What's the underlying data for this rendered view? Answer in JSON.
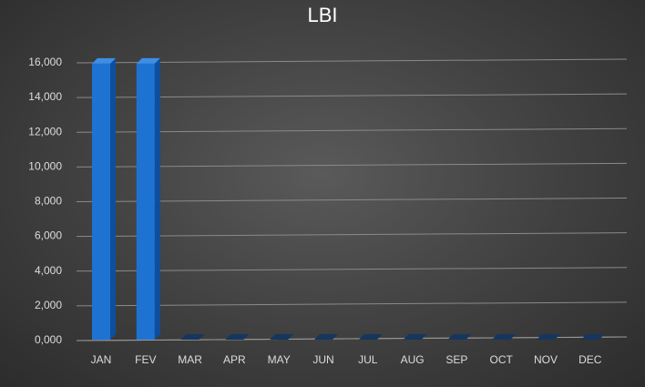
{
  "chart_data": {
    "type": "bar",
    "title": "LBI",
    "categories": [
      "JAN",
      "FEV",
      "MAR",
      "APR",
      "MAY",
      "JUN",
      "JUL",
      "AUG",
      "SEP",
      "OCT",
      "NOV",
      "DEC"
    ],
    "values": [
      15900,
      15900,
      0,
      0,
      0,
      0,
      0,
      0,
      0,
      0,
      0,
      0
    ],
    "xlabel": "",
    "ylabel": "",
    "ylim": [
      0,
      16000
    ],
    "yticks": [
      "0,000",
      "2,000",
      "4,000",
      "6,000",
      "8,000",
      "10,000",
      "12,000",
      "14,000",
      "16,000"
    ],
    "grid": true,
    "legend": "none",
    "bar_color": "#1e73d2",
    "bar_side_color": "#0d4f9e",
    "bar_top_color": "#3d8fe6",
    "background_color": "#3f3f3f"
  }
}
